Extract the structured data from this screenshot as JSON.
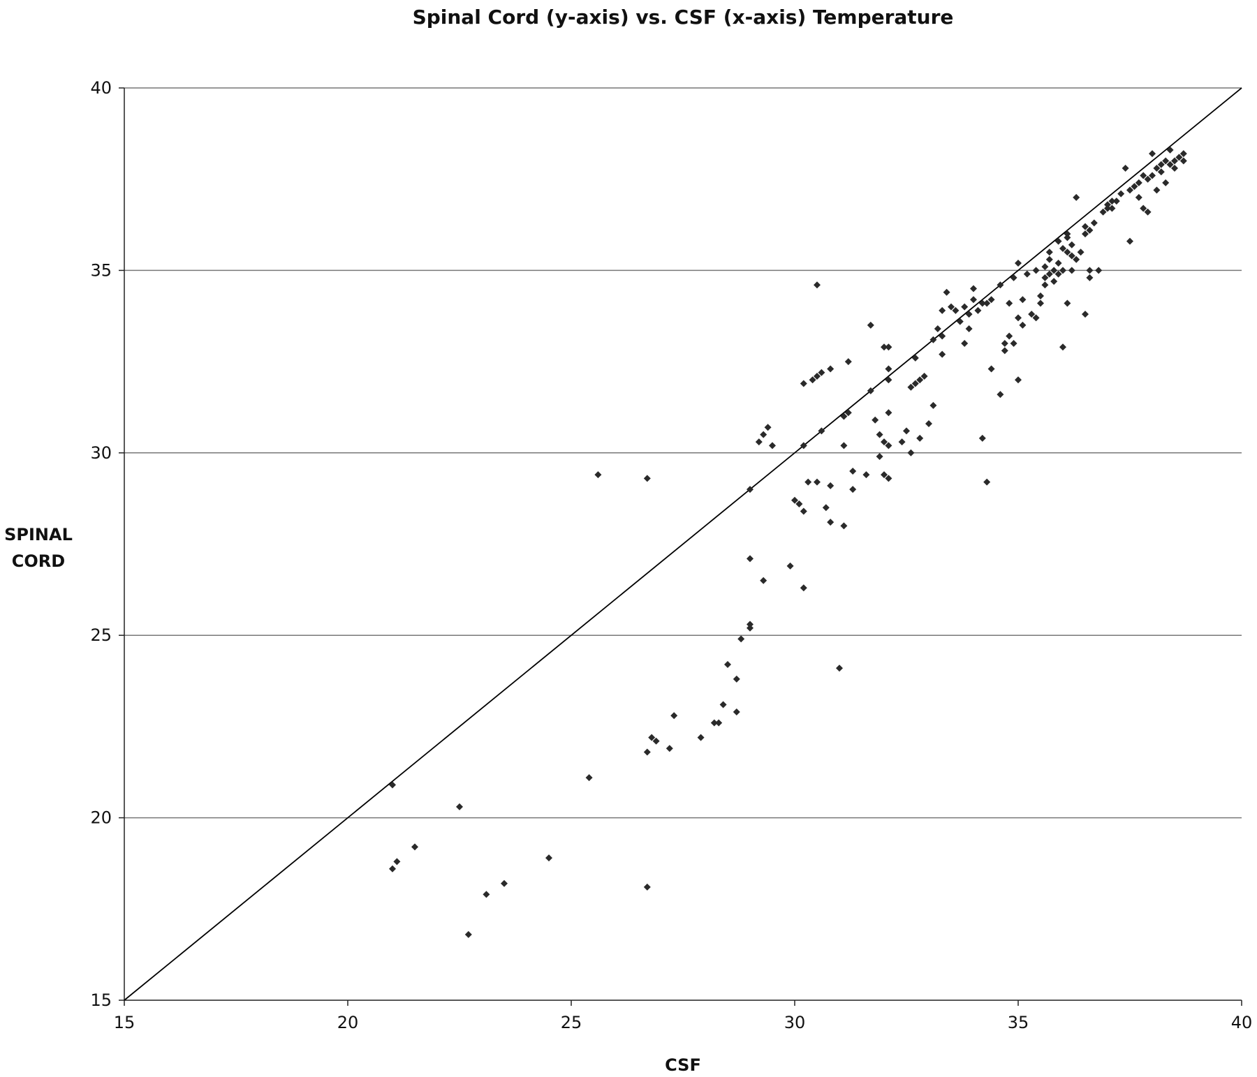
{
  "chart_data": {
    "type": "scatter",
    "title": "Spinal Cord (y-axis) vs. CSF (x-axis) Temperature",
    "xlabel": "CSF",
    "ylabel": [
      "SPINAL",
      "CORD"
    ],
    "xlim": [
      15,
      40
    ],
    "ylim": [
      15,
      40
    ],
    "xticks": [
      15,
      20,
      25,
      30,
      35,
      40
    ],
    "yticks": [
      15,
      20,
      25,
      30,
      35,
      40
    ],
    "grid": "horizontal",
    "legend": "none",
    "marker_color": "#2a2a2a",
    "reference_line": {
      "from": [
        15,
        15
      ],
      "to": [
        40,
        40
      ]
    },
    "points": [
      [
        21.0,
        20.9
      ],
      [
        21.0,
        18.6
      ],
      [
        21.1,
        18.8
      ],
      [
        21.5,
        19.2
      ],
      [
        22.5,
        20.3
      ],
      [
        22.7,
        16.8
      ],
      [
        23.1,
        17.9
      ],
      [
        23.5,
        18.2
      ],
      [
        24.5,
        18.9
      ],
      [
        25.4,
        21.1
      ],
      [
        25.6,
        29.4
      ],
      [
        26.7,
        29.3
      ],
      [
        26.7,
        18.1
      ],
      [
        26.7,
        21.8
      ],
      [
        26.8,
        22.2
      ],
      [
        26.9,
        22.1
      ],
      [
        27.2,
        21.9
      ],
      [
        27.3,
        22.8
      ],
      [
        27.9,
        22.2
      ],
      [
        28.2,
        22.6
      ],
      [
        28.3,
        22.6
      ],
      [
        28.4,
        23.1
      ],
      [
        28.5,
        24.2
      ],
      [
        28.7,
        23.8
      ],
      [
        28.7,
        22.9
      ],
      [
        28.8,
        24.9
      ],
      [
        29.0,
        29.0
      ],
      [
        29.0,
        27.1
      ],
      [
        29.0,
        25.3
      ],
      [
        29.0,
        25.2
      ],
      [
        29.2,
        30.3
      ],
      [
        29.3,
        30.5
      ],
      [
        29.3,
        26.5
      ],
      [
        29.4,
        30.7
      ],
      [
        29.5,
        30.2
      ],
      [
        29.9,
        26.9
      ],
      [
        30.0,
        28.7
      ],
      [
        30.1,
        28.6
      ],
      [
        30.2,
        28.4
      ],
      [
        30.2,
        26.3
      ],
      [
        30.2,
        30.2
      ],
      [
        30.2,
        31.9
      ],
      [
        30.4,
        32.0
      ],
      [
        30.5,
        32.1
      ],
      [
        30.5,
        34.6
      ],
      [
        30.6,
        32.2
      ],
      [
        30.8,
        32.3
      ],
      [
        30.3,
        29.2
      ],
      [
        30.5,
        29.2
      ],
      [
        30.6,
        30.6
      ],
      [
        30.7,
        28.5
      ],
      [
        30.8,
        29.1
      ],
      [
        30.8,
        28.1
      ],
      [
        31.0,
        24.1
      ],
      [
        31.1,
        31.0
      ],
      [
        31.1,
        30.2
      ],
      [
        31.1,
        28.0
      ],
      [
        31.2,
        31.1
      ],
      [
        31.2,
        32.5
      ],
      [
        31.3,
        29.0
      ],
      [
        31.3,
        29.5
      ],
      [
        31.6,
        29.4
      ],
      [
        31.7,
        31.7
      ],
      [
        31.7,
        33.5
      ],
      [
        31.8,
        30.9
      ],
      [
        31.9,
        30.5
      ],
      [
        31.9,
        29.9
      ],
      [
        32.0,
        29.4
      ],
      [
        32.0,
        30.3
      ],
      [
        32.0,
        32.9
      ],
      [
        32.1,
        32.9
      ],
      [
        32.1,
        29.3
      ],
      [
        32.1,
        31.1
      ],
      [
        32.1,
        32.0
      ],
      [
        32.1,
        30.2
      ],
      [
        32.1,
        32.3
      ],
      [
        32.4,
        30.3
      ],
      [
        32.5,
        30.6
      ],
      [
        32.6,
        30.0
      ],
      [
        32.6,
        31.8
      ],
      [
        32.7,
        31.9
      ],
      [
        32.7,
        32.6
      ],
      [
        32.8,
        30.4
      ],
      [
        32.8,
        32.0
      ],
      [
        32.9,
        32.1
      ],
      [
        33.0,
        30.8
      ],
      [
        33.1,
        31.3
      ],
      [
        33.1,
        33.1
      ],
      [
        33.2,
        33.4
      ],
      [
        33.3,
        33.2
      ],
      [
        33.3,
        32.7
      ],
      [
        33.3,
        33.9
      ],
      [
        33.4,
        34.4
      ],
      [
        33.5,
        34.0
      ],
      [
        33.6,
        33.9
      ],
      [
        33.7,
        33.6
      ],
      [
        33.8,
        34.0
      ],
      [
        33.8,
        33.0
      ],
      [
        33.9,
        33.4
      ],
      [
        33.9,
        33.8
      ],
      [
        34.0,
        34.2
      ],
      [
        34.0,
        34.5
      ],
      [
        34.1,
        33.9
      ],
      [
        34.2,
        30.4
      ],
      [
        34.2,
        34.1
      ],
      [
        34.3,
        29.2
      ],
      [
        34.3,
        34.1
      ],
      [
        34.4,
        34.2
      ],
      [
        34.4,
        32.3
      ],
      [
        34.6,
        31.6
      ],
      [
        34.6,
        34.6
      ],
      [
        34.7,
        33.0
      ],
      [
        34.7,
        32.8
      ],
      [
        34.8,
        33.2
      ],
      [
        34.8,
        34.1
      ],
      [
        34.9,
        33.0
      ],
      [
        34.9,
        34.8
      ],
      [
        35.0,
        35.2
      ],
      [
        35.0,
        32.0
      ],
      [
        35.0,
        33.7
      ],
      [
        35.1,
        34.2
      ],
      [
        35.1,
        33.5
      ],
      [
        35.2,
        34.9
      ],
      [
        35.3,
        33.8
      ],
      [
        35.4,
        33.7
      ],
      [
        35.4,
        35.0
      ],
      [
        35.5,
        34.1
      ],
      [
        35.5,
        34.3
      ],
      [
        35.6,
        34.6
      ],
      [
        35.6,
        35.1
      ],
      [
        35.6,
        34.8
      ],
      [
        35.7,
        35.3
      ],
      [
        35.7,
        34.9
      ],
      [
        35.7,
        35.5
      ],
      [
        35.8,
        34.7
      ],
      [
        35.8,
        35.0
      ],
      [
        35.9,
        34.9
      ],
      [
        35.9,
        35.8
      ],
      [
        35.9,
        35.2
      ],
      [
        36.0,
        35.0
      ],
      [
        36.0,
        35.6
      ],
      [
        36.0,
        32.9
      ],
      [
        36.1,
        34.1
      ],
      [
        36.1,
        35.9
      ],
      [
        36.1,
        35.5
      ],
      [
        36.1,
        36.0
      ],
      [
        36.2,
        35.4
      ],
      [
        36.2,
        35.0
      ],
      [
        36.2,
        35.7
      ],
      [
        36.3,
        37.0
      ],
      [
        36.3,
        35.3
      ],
      [
        36.4,
        35.5
      ],
      [
        36.5,
        36.0
      ],
      [
        36.5,
        36.2
      ],
      [
        36.5,
        33.8
      ],
      [
        36.6,
        34.8
      ],
      [
        36.6,
        35.0
      ],
      [
        36.6,
        36.1
      ],
      [
        36.7,
        36.3
      ],
      [
        36.8,
        35.0
      ],
      [
        36.9,
        36.6
      ],
      [
        37.0,
        36.8
      ],
      [
        37.0,
        36.7
      ],
      [
        37.1,
        36.9
      ],
      [
        37.1,
        36.7
      ],
      [
        37.2,
        36.9
      ],
      [
        37.3,
        37.1
      ],
      [
        37.4,
        37.8
      ],
      [
        37.5,
        35.8
      ],
      [
        37.5,
        37.2
      ],
      [
        37.6,
        37.3
      ],
      [
        37.7,
        37.4
      ],
      [
        37.7,
        37.0
      ],
      [
        37.8,
        37.6
      ],
      [
        37.8,
        36.7
      ],
      [
        37.9,
        36.6
      ],
      [
        37.9,
        37.5
      ],
      [
        38.0,
        37.6
      ],
      [
        38.0,
        38.2
      ],
      [
        38.1,
        37.8
      ],
      [
        38.1,
        37.2
      ],
      [
        38.2,
        37.7
      ],
      [
        38.2,
        37.9
      ],
      [
        38.3,
        37.4
      ],
      [
        38.3,
        38.0
      ],
      [
        38.4,
        38.3
      ],
      [
        38.4,
        37.9
      ],
      [
        38.5,
        38.0
      ],
      [
        38.5,
        37.8
      ],
      [
        38.6,
        38.1
      ],
      [
        38.7,
        38.2
      ],
      [
        38.7,
        38.0
      ]
    ]
  }
}
